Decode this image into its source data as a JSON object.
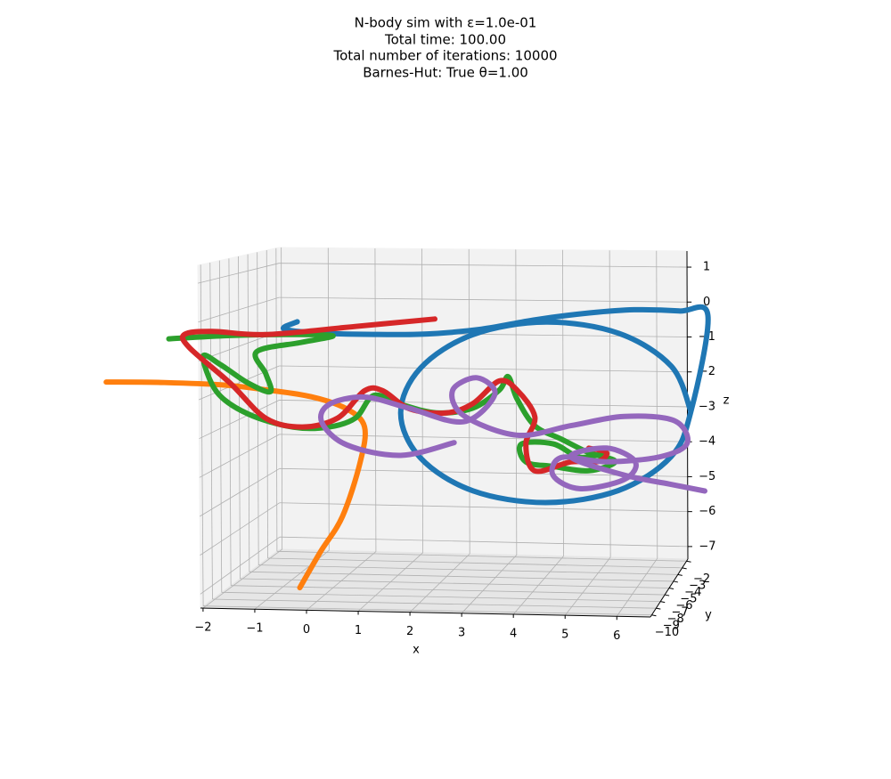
{
  "chart_data": {
    "type": "line3d",
    "title": [
      "N-body sim with ε=1.0e-01",
      "Total time: 100.00",
      "Total number of iterations: 10000",
      "Barnes-Hut: True     θ=1.00"
    ],
    "xlabel": "x",
    "ylabel": "y",
    "zlabel": "z",
    "xlim": [
      -2.05,
      6.65
    ],
    "ylim": [
      -10.3,
      -1.7
    ],
    "zlim": [
      -7.36,
      1.46
    ],
    "xticks": [
      {
        "value": -2,
        "label": "−2"
      },
      {
        "value": -1,
        "label": "−1"
      },
      0,
      1,
      2,
      3,
      4,
      5,
      6
    ],
    "yticks": [
      {
        "value": -10,
        "label": "−10"
      },
      {
        "value": -9,
        "label": "−9"
      },
      {
        "value": -8,
        "label": "−8"
      },
      {
        "value": -7,
        "label": "−7"
      },
      {
        "value": -6,
        "label": "−6"
      },
      {
        "value": -5,
        "label": "−5"
      },
      {
        "value": -4,
        "label": "−4"
      },
      {
        "value": -3,
        "label": "−3"
      },
      {
        "value": -2,
        "label": "−2"
      }
    ],
    "zticks": [
      {
        "value": -7,
        "label": "−7"
      },
      {
        "value": -6,
        "label": "−6"
      },
      {
        "value": -5,
        "label": "−5"
      },
      {
        "value": -4,
        "label": "−4"
      },
      {
        "value": -3,
        "label": "−3"
      },
      {
        "value": -2,
        "label": "−2"
      },
      {
        "value": -1,
        "label": "−1"
      },
      0,
      1
    ],
    "grid": true,
    "series": [
      {
        "color": "#1f77b4",
        "x": [
          -0.87,
          -1.14,
          -0.42,
          0.67,
          1.75,
          2.84,
          3.92,
          5.01,
          5.91,
          6.82,
          7.4,
          7.07,
          6.67,
          5.61,
          4.14,
          2.67,
          1.61,
          1.21,
          1.61,
          2.67,
          4.14,
          5.61,
          6.67,
          7.07
        ],
        "y": [
          -6,
          -6,
          -6,
          -6,
          -6,
          -6,
          -6,
          -6,
          -6,
          -6,
          -6,
          -6,
          -6,
          -6,
          -6,
          -6,
          -6,
          -6,
          -6,
          -6,
          -6,
          -6,
          -6,
          -6
        ],
        "z": [
          -0.31,
          -0.51,
          -0.61,
          -0.63,
          -0.6,
          -0.45,
          -0.18,
          0.02,
          0.12,
          0.1,
          -0.01,
          -2.6,
          -3.83,
          -4.76,
          -5.12,
          -4.84,
          -3.97,
          -2.76,
          -1.53,
          -0.6,
          -0.24,
          -0.52,
          -1.39,
          -2.6
        ]
      },
      {
        "color": "#ff7f0e",
        "x": [
          -4.73,
          -3.68,
          -2.41,
          -1.51,
          -0.6,
          0.12,
          0.48,
          0.39,
          0.03,
          -0.42,
          -0.84
        ],
        "y": [
          -6,
          -6,
          -6,
          -6,
          -6,
          -6,
          -6,
          -6,
          -6,
          -6,
          -6
        ],
        "z": [
          -2.03,
          -2.02,
          -2.06,
          -2.18,
          -2.35,
          -2.67,
          -3.15,
          -4.12,
          -5.6,
          -6.58,
          -7.57
        ]
      },
      {
        "color": "#2ca02c",
        "x": [
          -3.46,
          -2.23,
          -0.96,
          -0.15,
          -0.78,
          -1.69,
          -1.51,
          -1.42,
          -1.87,
          -2.41,
          -2.77,
          -2.5,
          -1.87,
          -0.96,
          -0.24,
          0.3,
          0.67,
          1.21,
          1.93,
          2.66,
          3.2,
          3.38,
          3.56,
          3.92,
          4.46,
          5.01,
          5.55,
          5.01,
          4.29,
          3.74,
          3.65,
          4.29,
          4.83,
          5.37
        ],
        "y": [
          -6,
          -6,
          -6,
          -6,
          -6,
          -6,
          -6,
          -6,
          -6,
          -6,
          -6,
          -6,
          -6,
          -6,
          -6,
          -6,
          -6,
          -6,
          -6,
          -6,
          -6,
          -6,
          -6,
          -6,
          -6,
          -6,
          -6,
          -6,
          -6,
          -6,
          -6,
          -6,
          -6,
          -6
        ],
        "z": [
          -0.82,
          -0.71,
          -0.66,
          -0.68,
          -0.87,
          -1.14,
          -1.74,
          -2.23,
          -2.0,
          -1.52,
          -1.29,
          -2.26,
          -2.85,
          -3.19,
          -3.17,
          -2.91,
          -2.29,
          -2.52,
          -2.74,
          -2.6,
          -2.1,
          -1.73,
          -2.33,
          -3.05,
          -3.4,
          -3.75,
          -3.98,
          -4.24,
          -4.14,
          -4.03,
          -3.55,
          -3.53,
          -3.88,
          -3.74
        ]
      },
      {
        "color": "#d62728",
        "x": [
          1.9,
          0.3,
          -1.51,
          -2.59,
          -3.14,
          -3.05,
          -2.23,
          -1.51,
          -0.78,
          -0.06,
          0.48,
          0.85,
          1.39,
          2.11,
          2.66,
          3.2,
          3.56,
          3.92,
          3.74,
          3.92,
          4.65,
          5.19,
          5.37,
          5.01
        ],
        "y": [
          -6,
          -6,
          -6,
          -6,
          -6,
          -6,
          -6,
          -6,
          -6,
          -6,
          -6,
          -6,
          -6,
          -6,
          -6,
          -6,
          -6,
          -6,
          -6,
          -6,
          -6,
          -6,
          -6,
          -6
        ],
        "z": [
          -0.19,
          -0.42,
          -0.67,
          -0.6,
          -0.69,
          -1.05,
          -2.01,
          -2.96,
          -3.18,
          -2.92,
          -2.17,
          -2.16,
          -2.64,
          -2.74,
          -2.48,
          -1.85,
          -2.09,
          -2.81,
          -3.54,
          -4.27,
          -4.01,
          -3.99,
          -3.74,
          -3.63
        ]
      },
      {
        "color": "#9467bd",
        "x": [
          2.29,
          1.21,
          0.12,
          -0.38,
          -0.24,
          0.48,
          1.39,
          2.48,
          3.11,
          2.75,
          2.26,
          2.48,
          3.56,
          4.65,
          5.73,
          6.73,
          7.0,
          6.46,
          5.37,
          4.47,
          4.29,
          4.83,
          5.73,
          5.95,
          5.37,
          4.65,
          5.73,
          6.64,
          7.36
        ],
        "y": [
          -6,
          -6,
          -6,
          -6,
          -6,
          -6,
          -6,
          -6,
          -6,
          -6,
          -6,
          -6,
          -6,
          -6,
          -6,
          -6,
          -6,
          -6,
          -6,
          -6,
          -6,
          -6,
          -6,
          -6,
          -6,
          -6,
          -6,
          -6,
          -6
        ],
        "z": [
          -3.54,
          -3.91,
          -3.65,
          -3.05,
          -2.56,
          -2.34,
          -2.63,
          -2.97,
          -2.22,
          -1.77,
          -2.12,
          -2.8,
          -3.31,
          -3.03,
          -2.76,
          -2.85,
          -3.45,
          -3.83,
          -3.99,
          -3.89,
          -4.38,
          -4.73,
          -4.46,
          -3.97,
          -3.62,
          -3.88,
          -4.34,
          -4.56,
          -4.73
        ]
      }
    ]
  }
}
